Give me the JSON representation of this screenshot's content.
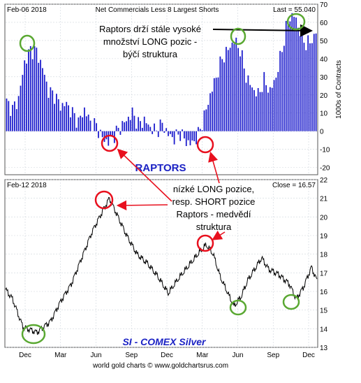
{
  "chart_data": [
    {
      "panel": "top",
      "type": "bar",
      "title": "Net Commercials Less 8 Largest Shorts",
      "date_label": "Feb-06  2018",
      "last_label": "Last = 55.040",
      "ylabel": "1000s of Contracts",
      "ylim": [
        -24,
        70
      ],
      "yticks": [
        -20,
        -10,
        0,
        10,
        20,
        30,
        40,
        50,
        60,
        70
      ],
      "series_name": "RAPTORS",
      "bar_color": "#1a1acc",
      "keypoints": [
        [
          0,
          16
        ],
        [
          3,
          12
        ],
        [
          6,
          18
        ],
        [
          9,
          38
        ],
        [
          12,
          45
        ],
        [
          15,
          44
        ],
        [
          18,
          35
        ],
        [
          21,
          22
        ],
        [
          24,
          20
        ],
        [
          27,
          14
        ],
        [
          30,
          15
        ],
        [
          33,
          10
        ],
        [
          36,
          5
        ],
        [
          39,
          12
        ],
        [
          42,
          5
        ],
        [
          45,
          3
        ],
        [
          48,
          -4
        ],
        [
          51,
          -6
        ],
        [
          54,
          -2
        ],
        [
          57,
          2
        ],
        [
          60,
          6
        ],
        [
          63,
          10
        ],
        [
          66,
          4
        ],
        [
          69,
          6
        ],
        [
          72,
          2
        ],
        [
          75,
          0
        ],
        [
          78,
          4
        ],
        [
          81,
          -2
        ],
        [
          84,
          -4
        ],
        [
          87,
          -1
        ],
        [
          90,
          -6
        ],
        [
          93,
          -7
        ],
        [
          96,
          -2
        ],
        [
          99,
          8
        ],
        [
          102,
          20
        ],
        [
          105,
          30
        ],
        [
          108,
          40
        ],
        [
          111,
          45
        ],
        [
          114,
          50
        ],
        [
          117,
          45
        ],
        [
          120,
          30
        ],
        [
          123,
          24
        ],
        [
          126,
          20
        ],
        [
          129,
          28
        ],
        [
          132,
          22
        ],
        [
          135,
          30
        ],
        [
          138,
          45
        ],
        [
          141,
          62
        ],
        [
          144,
          64
        ],
        [
          147,
          55
        ],
        [
          150,
          48
        ],
        [
          153,
          50
        ],
        [
          155,
          55
        ]
      ]
    },
    {
      "panel": "bottom",
      "type": "line",
      "title": "SI  -  COMEX Silver",
      "date_label": "Feb-12  2018",
      "last_label": "Close = 16.57",
      "ylim": [
        13,
        22
      ],
      "yticks": [
        13,
        14,
        15,
        16,
        17,
        18,
        19,
        20,
        21,
        22
      ],
      "line_color": "#000000",
      "keypoints": [
        [
          0,
          16.1
        ],
        [
          10,
          15.6
        ],
        [
          25,
          14.1
        ],
        [
          45,
          13.8
        ],
        [
          65,
          14.4
        ],
        [
          80,
          15.5
        ],
        [
          95,
          16.4
        ],
        [
          110,
          17.8
        ],
        [
          125,
          19.2
        ],
        [
          140,
          20.3
        ],
        [
          150,
          21.0
        ],
        [
          160,
          20.2
        ],
        [
          175,
          19.0
        ],
        [
          190,
          18.0
        ],
        [
          205,
          17.5
        ],
        [
          220,
          16.8
        ],
        [
          235,
          15.9
        ],
        [
          250,
          16.7
        ],
        [
          265,
          17.4
        ],
        [
          280,
          18.1
        ],
        [
          290,
          18.5
        ],
        [
          300,
          18.0
        ],
        [
          310,
          16.8
        ],
        [
          320,
          16.0
        ],
        [
          330,
          15.2
        ],
        [
          340,
          15.7
        ],
        [
          350,
          16.6
        ],
        [
          360,
          17.2
        ],
        [
          370,
          17.8
        ],
        [
          380,
          17.2
        ],
        [
          395,
          16.9
        ],
        [
          410,
          16.4
        ],
        [
          420,
          15.6
        ],
        [
          430,
          16.2
        ],
        [
          442,
          17.3
        ],
        [
          450,
          16.57
        ]
      ]
    }
  ],
  "x_axis": {
    "tick_labels": [
      "Dec",
      "Mar",
      "Jun",
      "Sep",
      "Dec",
      "Mar",
      "Jun",
      "Sep",
      "Dec"
    ]
  },
  "annotations": {
    "top_note_lines": [
      "Raptors drží stále vysoké",
      "množství LONG pozic -",
      "býčí struktura"
    ],
    "middle_note_lines": [
      "nízké LONG pozice,",
      "resp. SHORT pozice",
      "Raptors - medvědí",
      "struktura"
    ],
    "raptors_label": "RAPTORS",
    "silver_label": "SI  -  COMEX Silver",
    "footer": "world gold charts © www.goldchartsrus.com"
  },
  "colors": {
    "bar": "#1a1acc",
    "label_blue": "#1b22c4",
    "circle_green": "#5aa832",
    "circle_red": "#e8101e",
    "arrow_red": "#e8101e",
    "frame": "#555555",
    "grid": "#cfd6dc"
  }
}
